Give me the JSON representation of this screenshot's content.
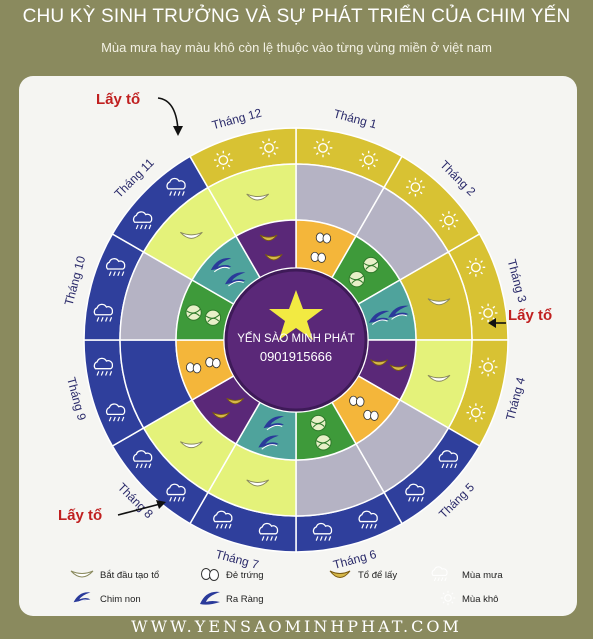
{
  "header": {
    "title": "CHU KỲ SINH TRƯỞNG VÀ SỰ PHÁT TRIỂN CỦA CHIM YẾN",
    "subtitle": "Mùa mưa hay màu khô còn lệ thuộc vào từng vùng miền ở việt nam"
  },
  "callouts": {
    "top": "Lấy tổ",
    "right": "Lấy tổ",
    "bottom": "Lấy tổ"
  },
  "months": [
    "Tháng 1",
    "Tháng 2",
    "Tháng 3",
    "Tháng 4",
    "Tháng 5",
    "Tháng 6",
    "Tháng 7",
    "Tháng 8",
    "Tháng 9",
    "Tháng 10",
    "Tháng 11",
    "Tháng 12"
  ],
  "center": {
    "brand": "YẾN SÀO MINH PHÁT",
    "phone": "0901915666"
  },
  "legend": {
    "nest_start": "Bắt đầu tạo tổ",
    "eggs": "Đẻ trứng",
    "nest_harvest": "Tổ để lấy",
    "rainy": "Mùa mưa",
    "chick": "Chim non",
    "fledge": "Ra Ràng",
    "dry": "Mùa khô"
  },
  "footer": {
    "website": "WWW.YENSAOMINHPHAT.COM"
  },
  "colors": {
    "background": "#8a8a5e",
    "dry_season": "#d8c233",
    "rainy_season": "#2f3f9c",
    "lime": "#e4f27a",
    "grey": "#b5b3c4",
    "purple": "#5a2878",
    "green": "#3e9a3a",
    "orange": "#f4b63a",
    "teal": "#4fa39c",
    "callout_red": "#c02020"
  }
}
